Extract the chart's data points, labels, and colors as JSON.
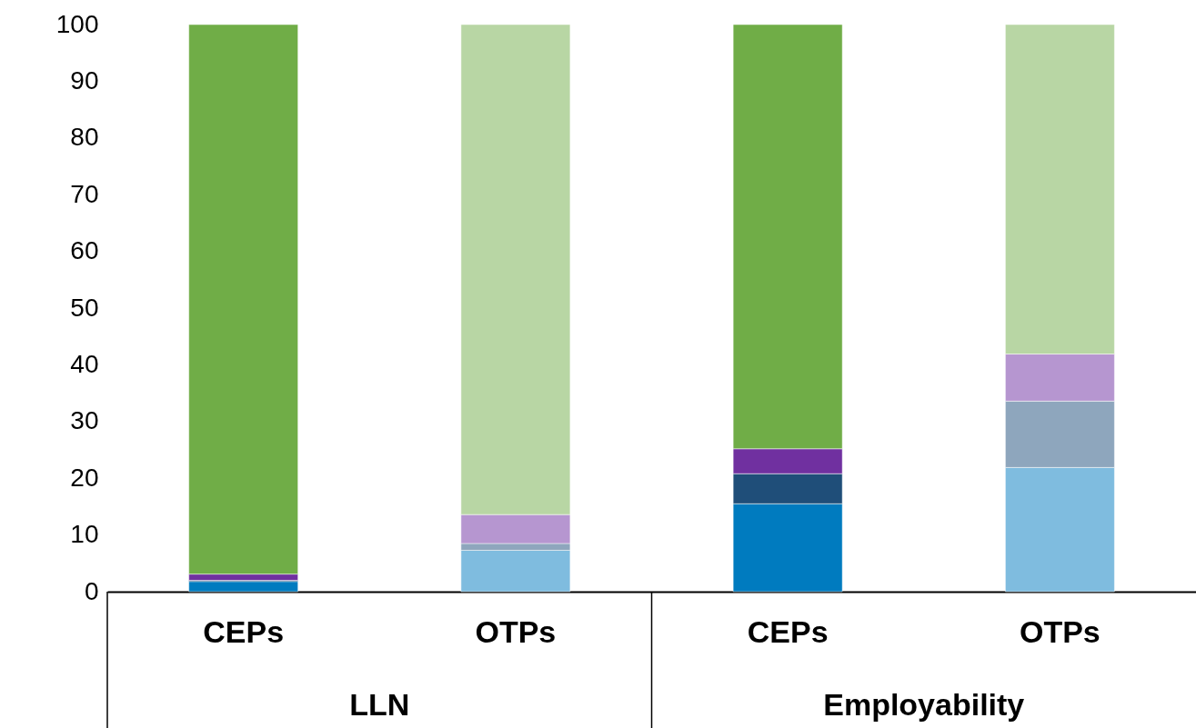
{
  "chart_data": {
    "type": "bar",
    "stacked": true,
    "categories": [
      "CEPs",
      "OTPs",
      "CEPs",
      "OTPs"
    ],
    "series": [
      {
        "colors": [
          "#007bbf",
          "#7fbcdf",
          "#007bbf",
          "#7fbcdf"
        ],
        "values": [
          1.8,
          7.3,
          15.5,
          21.9
        ]
      },
      {
        "colors": [
          "#1f4e79",
          "#8ea6bd",
          "#1f4e79",
          "#8ea6bd"
        ],
        "values": [
          0.2,
          1.2,
          5.3,
          11.7
        ]
      },
      {
        "colors": [
          "#7030a0",
          "#b696d0",
          "#7030a0",
          "#b696d0"
        ],
        "values": [
          1.1,
          5.1,
          4.4,
          8.3
        ]
      },
      {
        "colors": [
          "#70ad47",
          "#b8d6a4",
          "#70ad47",
          "#b8d6a4"
        ],
        "values": [
          96.9,
          86.4,
          74.8,
          58.1
        ]
      }
    ],
    "annotations": [
      "LLN",
      "Employability"
    ],
    "ylim": [
      0,
      100
    ],
    "yticks": [
      0,
      10,
      20,
      30,
      40,
      50,
      60,
      70,
      80,
      90,
      100
    ],
    "grid": false
  }
}
